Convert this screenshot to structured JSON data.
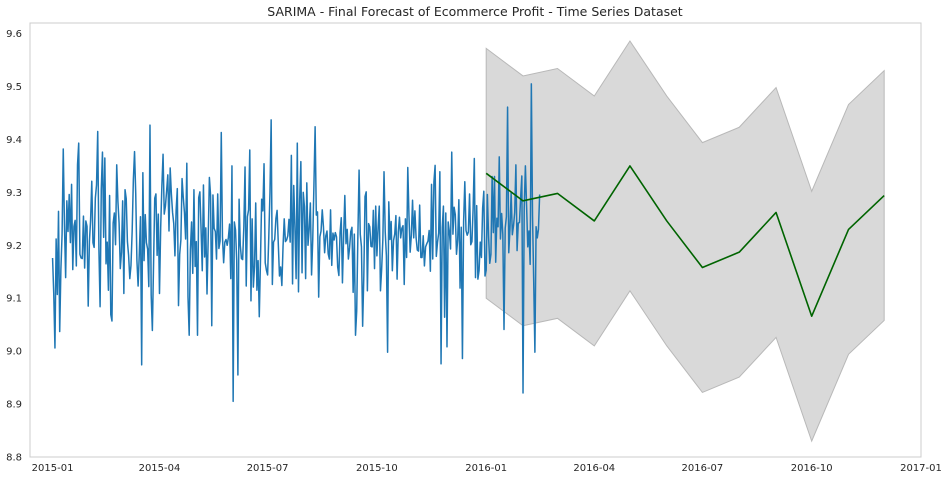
{
  "chart_data": {
    "type": "line",
    "title": "SARIMA - Final Forecast of Ecommerce Profit - Time Series Dataset",
    "xlabel": "",
    "ylabel": "",
    "x_axis_type": "date",
    "xlim": [
      "2014-12-13",
      "2017-01-01"
    ],
    "ylim": [
      8.8,
      9.62
    ],
    "grid": false,
    "legend": "none",
    "x_ticks": [
      "2015-01-01",
      "2015-04-01",
      "2015-07-01",
      "2015-10-01",
      "2016-01-01",
      "2016-04-01",
      "2016-07-01",
      "2016-10-01",
      "2017-01-01"
    ],
    "x_tick_labels": [
      "2015-01",
      "2015-04",
      "2015-07",
      "2015-10",
      "2016-01",
      "2016-04",
      "2016-07",
      "2016-10",
      "2017-01"
    ],
    "y_ticks": [
      8.8,
      8.9,
      9.0,
      9.1,
      9.2,
      9.3,
      9.4,
      9.5,
      9.6
    ],
    "y_tick_labels": [
      "8.8",
      "8.9",
      "9.0",
      "9.1",
      "9.2",
      "9.3",
      "9.4",
      "9.5",
      "9.6"
    ],
    "series": [
      {
        "role": "observed",
        "color": "#1f77b4",
        "x_start": "2015-01-01",
        "frequency": "daily",
        "values": [
          9.176,
          9.108,
          9.006,
          9.212,
          9.107,
          9.264,
          9.037,
          9.154,
          9.221,
          9.382,
          9.239,
          9.139,
          9.284,
          9.226,
          9.296,
          9.205,
          9.315,
          9.154,
          9.236,
          9.247,
          9.161,
          9.352,
          9.393,
          9.183,
          9.176,
          9.175,
          9.255,
          9.157,
          9.246,
          9.236,
          9.085,
          9.207,
          9.247,
          9.321,
          9.205,
          9.196,
          9.289,
          9.314,
          9.415,
          9.194,
          9.084,
          9.306,
          9.376,
          9.215,
          9.365,
          9.165,
          9.206,
          9.115,
          9.294,
          9.069,
          9.057,
          9.242,
          9.261,
          9.201,
          9.352,
          9.283,
          9.242,
          9.156,
          9.187,
          9.284,
          9.109,
          9.305,
          9.288,
          9.207,
          9.181,
          9.137,
          9.162,
          9.227,
          9.324,
          9.377,
          9.298,
          9.171,
          9.123,
          9.184,
          9.254,
          8.974,
          9.337,
          9.171,
          9.258,
          9.205,
          9.193,
          9.122,
          9.427,
          9.106,
          9.039,
          9.164,
          9.289,
          9.297,
          9.181,
          9.259,
          9.109,
          9.233,
          9.312,
          9.372,
          9.259,
          9.274,
          9.303,
          9.333,
          9.227,
          9.346,
          9.297,
          9.262,
          9.241,
          9.18,
          9.266,
          9.307,
          9.086,
          9.183,
          9.21,
          9.326,
          9.291,
          9.262,
          9.212,
          9.355,
          9.102,
          9.03,
          9.191,
          9.244,
          9.147,
          9.305,
          9.16,
          9.207,
          9.03,
          9.29,
          9.301,
          9.23,
          9.152,
          9.314,
          9.178,
          9.233,
          9.108,
          9.213,
          9.328,
          9.294,
          9.048,
          9.295,
          9.232,
          9.226,
          9.174,
          9.297,
          9.194,
          9.208,
          9.413,
          9.216,
          9.167,
          9.206,
          9.211,
          9.2,
          9.215,
          9.24,
          9.137,
          9.35,
          8.905,
          9.244,
          9.229,
          9.171,
          8.955,
          9.287,
          9.2,
          9.175,
          9.173,
          9.235,
          9.348,
          9.123,
          9.254,
          9.267,
          9.38,
          9.095,
          9.25,
          9.121,
          9.16,
          9.28,
          9.115,
          9.171,
          9.065,
          9.171,
          9.287,
          9.265,
          9.354,
          9.167,
          9.153,
          9.144,
          9.216,
          9.3,
          9.437,
          9.126,
          9.206,
          9.211,
          9.251,
          9.266,
          9.203,
          9.142,
          9.159,
          9.124,
          9.198,
          9.25,
          9.207,
          9.21,
          9.218,
          9.249,
          9.206,
          9.37,
          9.127,
          9.313,
          9.234,
          9.137,
          9.393,
          9.112,
          9.287,
          9.358,
          9.148,
          9.3,
          9.273,
          9.137,
          9.318,
          9.2,
          9.231,
          9.28,
          9.144,
          9.211,
          9.314,
          9.424,
          9.257,
          9.263,
          9.102,
          9.216,
          9.227,
          9.267,
          9.235,
          9.186,
          9.218,
          9.227,
          9.184,
          9.174,
          9.267,
          9.162,
          9.223,
          9.21,
          9.224,
          9.216,
          9.159,
          9.143,
          9.224,
          9.252,
          9.129,
          9.217,
          9.294,
          9.203,
          9.23,
          9.174,
          9.195,
          9.226,
          9.234,
          9.111,
          9.221,
          9.03,
          9.076,
          9.219,
          9.342,
          9.221,
          9.197,
          9.047,
          9.143,
          9.292,
          9.301,
          9.114,
          9.241,
          9.235,
          9.198,
          9.197,
          9.266,
          9.156,
          9.274,
          9.18,
          9.233,
          9.274,
          9.114,
          9.155,
          9.21,
          9.339,
          9.226,
          9.18,
          8.998,
          9.282,
          9.211,
          9.245,
          9.152,
          9.209,
          9.221,
          9.256,
          9.136,
          9.225,
          9.253,
          9.214,
          9.232,
          9.237,
          9.126,
          9.25,
          9.177,
          9.347,
          9.256,
          9.187,
          9.219,
          9.285,
          9.214,
          9.265,
          9.214,
          9.191,
          9.189,
          9.276,
          9.177,
          9.177,
          9.218,
          9.161,
          9.197,
          9.203,
          9.208,
          9.228,
          9.151,
          9.315,
          9.174,
          9.32,
          9.351,
          9.179,
          9.205,
          9.223,
          9.339,
          8.976,
          9.233,
          9.274,
          9.064,
          9.261,
          9.008,
          9.244,
          9.226,
          9.193,
          9.376,
          9.221,
          9.272,
          9.258,
          9.183,
          9.21,
          9.286,
          9.119,
          9.234,
          8.986,
          9.245,
          9.32,
          9.228,
          9.219,
          9.225,
          9.297,
          9.201,
          9.207,
          9.269,
          9.364,
          9.139,
          9.275,
          9.136,
          9.152,
          9.206,
          9.177,
          9.27,
          9.302,
          9.142,
          9.153,
          9.296,
          9.217,
          9.166,
          9.183,
          9.33,
          9.224,
          9.33,
          9.168,
          9.251,
          9.235,
          9.367,
          9.212,
          9.26,
          9.221,
          9.041,
          9.232,
          9.254,
          9.461,
          9.186,
          9.23,
          9.299,
          9.22,
          9.237,
          9.262,
          9.352,
          9.19,
          9.242,
          9.243,
          9.29,
          9.331,
          8.921,
          9.27,
          9.35,
          9.275,
          9.197,
          9.227,
          9.164,
          9.505,
          9.256,
          9.132,
          8.998,
          9.235,
          9.214,
          9.23,
          9.296
        ]
      },
      {
        "role": "forecast",
        "color": "#006400",
        "x": [
          "2016-01-01",
          "2016-02-01",
          "2016-03-01",
          "2016-04-01",
          "2016-05-01",
          "2016-06-01",
          "2016-07-01",
          "2016-08-01",
          "2016-09-01",
          "2016-10-01",
          "2016-11-01",
          "2016-12-01"
        ],
        "values": [
          9.336,
          9.284,
          9.298,
          9.246,
          9.35,
          9.246,
          9.158,
          9.187,
          9.262,
          9.066,
          9.23,
          9.294
        ],
        "ci_lower": [
          9.1,
          9.048,
          9.062,
          9.01,
          9.114,
          9.01,
          8.922,
          8.951,
          9.026,
          8.83,
          8.994,
          9.058
        ],
        "ci_upper": [
          9.572,
          9.52,
          9.534,
          9.482,
          9.586,
          9.482,
          9.394,
          9.423,
          9.498,
          9.302,
          9.466,
          9.53
        ],
        "ci_fill_color": "#d9d9d9",
        "ci_edge_color": "#b8b8b8"
      }
    ]
  }
}
